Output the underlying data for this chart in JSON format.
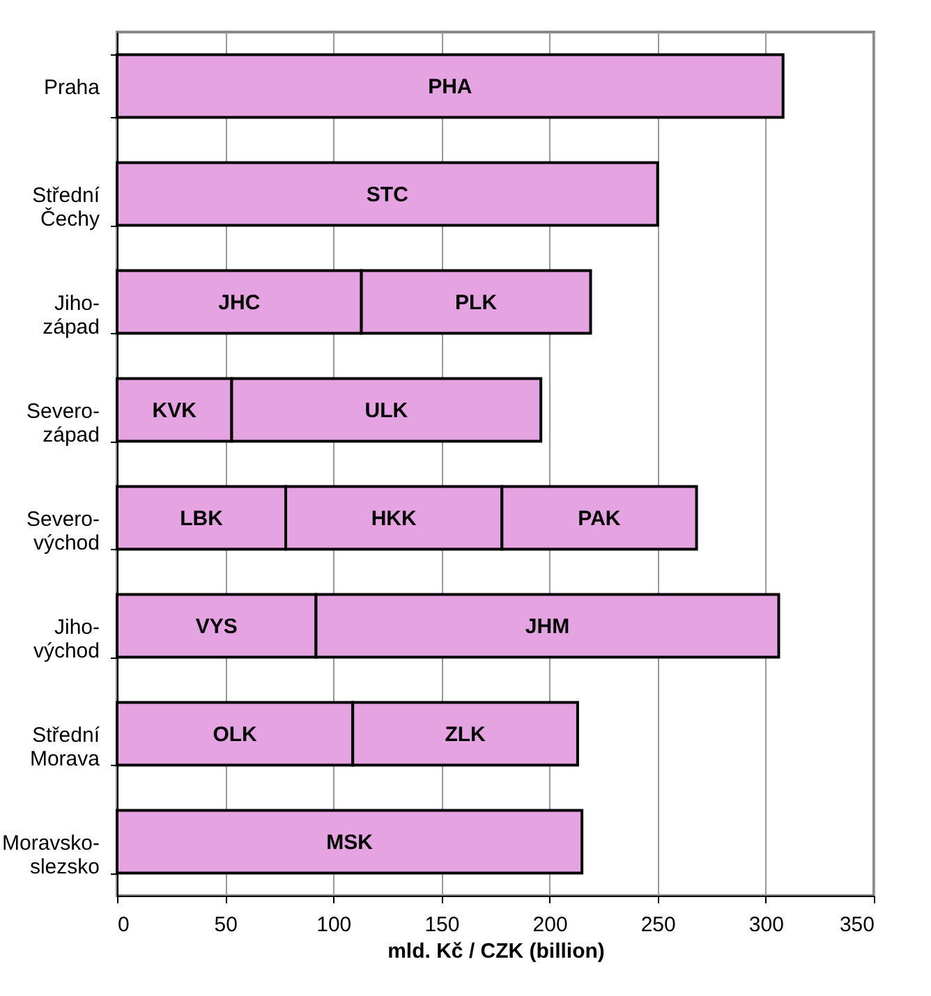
{
  "chart_data": {
    "type": "bar",
    "orientation": "horizontal",
    "stacked": true,
    "xlabel": "mld. Kč / CZK (billion)",
    "categories": [
      "Praha",
      "Střední Čechy",
      "Jiho-západ",
      "Severo-západ",
      "Severo-východ",
      "Jiho-východ",
      "Střední Morava",
      "Moravsko-slezsko"
    ],
    "series": [
      {
        "color": "#e6a3e2",
        "values": [
          308,
          250,
          113,
          53,
          78,
          92,
          109,
          215
        ],
        "value_labels": [
          "PHA",
          "STC",
          "JHC",
          "KVK",
          "LBK",
          "VYS",
          "OLK",
          "MSK"
        ]
      },
      {
        "color": "#e6a3e2",
        "values": [
          null,
          null,
          106,
          143,
          100,
          214,
          104,
          null
        ],
        "value_labels": [
          null,
          null,
          "PLK",
          "ULK",
          "HKK",
          "JHM",
          "ZLK",
          null
        ]
      },
      {
        "color": "#e6a3e2",
        "values": [
          null,
          null,
          null,
          null,
          90,
          null,
          null,
          null
        ],
        "value_labels": [
          null,
          null,
          null,
          null,
          "PAK",
          null,
          null,
          null
        ]
      }
    ],
    "xlim": [
      0,
      350
    ],
    "xticks": [
      0,
      50,
      100,
      150,
      200,
      250,
      300,
      350
    ],
    "grid": "x"
  }
}
